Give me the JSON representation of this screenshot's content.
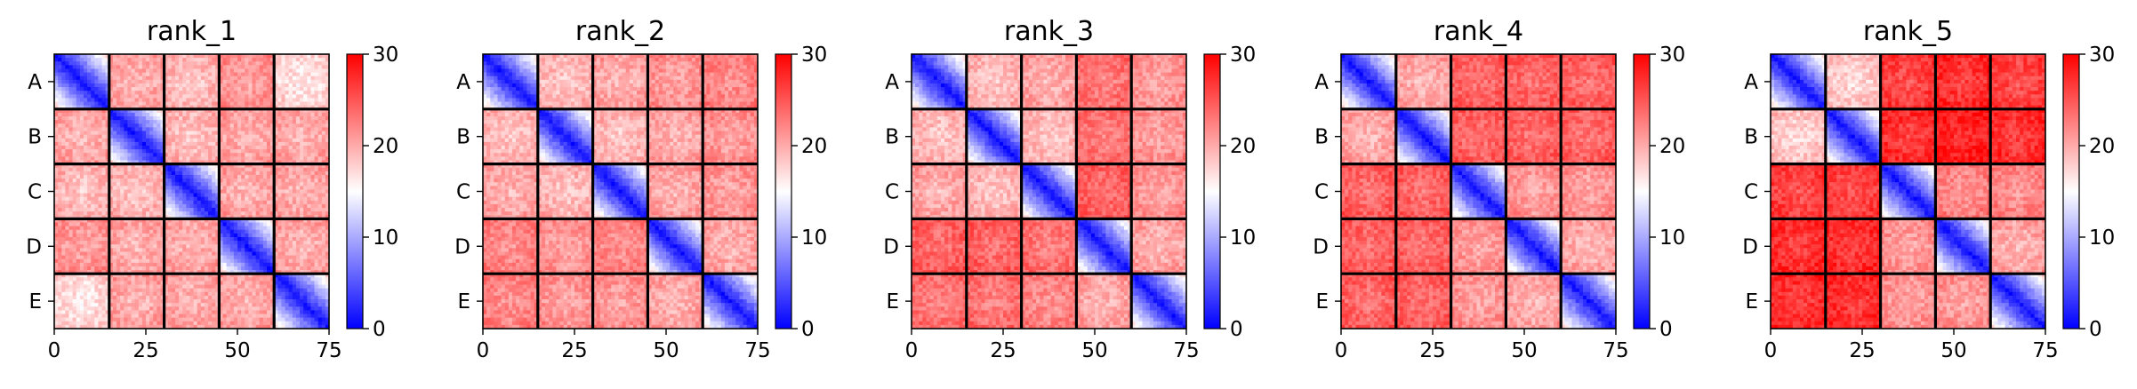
{
  "chart_data": [
    {
      "type": "heatmap",
      "title": "rank_1",
      "row_labels": [
        "A",
        "B",
        "C",
        "D",
        "E"
      ],
      "x_ticks": [
        0,
        25,
        50,
        75
      ],
      "xlim": [
        0,
        75
      ],
      "ylim": [
        75,
        0
      ],
      "block_size": 15,
      "block_dividers": [
        15,
        30,
        45,
        60
      ],
      "colorbar": {
        "min": 0,
        "max": 30,
        "ticks": [
          0,
          10,
          20,
          30
        ],
        "colormap": "bwr",
        "center": 15
      },
      "approx_block_mean_matrix": [
        [
          5,
          20,
          19,
          21,
          17
        ],
        [
          20,
          5,
          19,
          20,
          20
        ],
        [
          19,
          19,
          5,
          20,
          20
        ],
        [
          21,
          20,
          20,
          5,
          20
        ],
        [
          17,
          20,
          20,
          20,
          5
        ]
      ]
    },
    {
      "type": "heatmap",
      "title": "rank_2",
      "row_labels": [
        "A",
        "B",
        "C",
        "D",
        "E"
      ],
      "x_ticks": [
        0,
        25,
        50,
        75
      ],
      "xlim": [
        0,
        75
      ],
      "ylim": [
        75,
        0
      ],
      "block_size": 15,
      "block_dividers": [
        15,
        30,
        45,
        60
      ],
      "colorbar": {
        "min": 0,
        "max": 30,
        "ticks": [
          0,
          10,
          20,
          30
        ],
        "colormap": "bwr",
        "center": 15
      },
      "approx_block_mean_matrix": [
        [
          5,
          19,
          20,
          21,
          22
        ],
        [
          19,
          5,
          19,
          20,
          21
        ],
        [
          20,
          19,
          5,
          20,
          21
        ],
        [
          22,
          21,
          22,
          5,
          20
        ],
        [
          22,
          21,
          21,
          20,
          5
        ]
      ]
    },
    {
      "type": "heatmap",
      "title": "rank_3",
      "row_labels": [
        "A",
        "B",
        "C",
        "D",
        "E"
      ],
      "x_ticks": [
        0,
        25,
        50,
        75
      ],
      "xlim": [
        0,
        75
      ],
      "ylim": [
        75,
        0
      ],
      "block_size": 15,
      "block_dividers": [
        15,
        30,
        45,
        60
      ],
      "colorbar": {
        "min": 0,
        "max": 30,
        "ticks": [
          0,
          10,
          20,
          30
        ],
        "colormap": "bwr",
        "center": 15
      },
      "approx_block_mean_matrix": [
        [
          5,
          19,
          20,
          23,
          21
        ],
        [
          19,
          5,
          19,
          23,
          21
        ],
        [
          20,
          19,
          5,
          24,
          21
        ],
        [
          24,
          24,
          23,
          5,
          20
        ],
        [
          23,
          23,
          22,
          20,
          5
        ]
      ]
    },
    {
      "type": "heatmap",
      "title": "rank_4",
      "row_labels": [
        "A",
        "B",
        "C",
        "D",
        "E"
      ],
      "x_ticks": [
        0,
        25,
        50,
        75
      ],
      "xlim": [
        0,
        75
      ],
      "ylim": [
        75,
        0
      ],
      "block_size": 15,
      "block_dividers": [
        15,
        30,
        45,
        60
      ],
      "colorbar": {
        "min": 0,
        "max": 30,
        "ticks": [
          0,
          10,
          20,
          30
        ],
        "colormap": "bwr",
        "center": 15
      },
      "approx_block_mean_matrix": [
        [
          5,
          20,
          24,
          24,
          24
        ],
        [
          20,
          5,
          24,
          24,
          24
        ],
        [
          24,
          24,
          5,
          21,
          21
        ],
        [
          24,
          24,
          21,
          5,
          20
        ],
        [
          24,
          24,
          21,
          20,
          5
        ]
      ]
    },
    {
      "type": "heatmap",
      "title": "rank_5",
      "row_labels": [
        "A",
        "B",
        "C",
        "D",
        "E"
      ],
      "x_ticks": [
        0,
        25,
        50,
        75
      ],
      "xlim": [
        0,
        75
      ],
      "ylim": [
        75,
        0
      ],
      "block_size": 15,
      "block_dividers": [
        15,
        30,
        45,
        60
      ],
      "colorbar": {
        "min": 0,
        "max": 30,
        "ticks": [
          0,
          10,
          20,
          30
        ],
        "colormap": "bwr",
        "center": 15
      },
      "approx_block_mean_matrix": [
        [
          5,
          18,
          26,
          27,
          26
        ],
        [
          18,
          5,
          27,
          28,
          27
        ],
        [
          26,
          26,
          5,
          22,
          22
        ],
        [
          27,
          27,
          21,
          5,
          20
        ],
        [
          27,
          27,
          21,
          21,
          5
        ]
      ]
    }
  ]
}
